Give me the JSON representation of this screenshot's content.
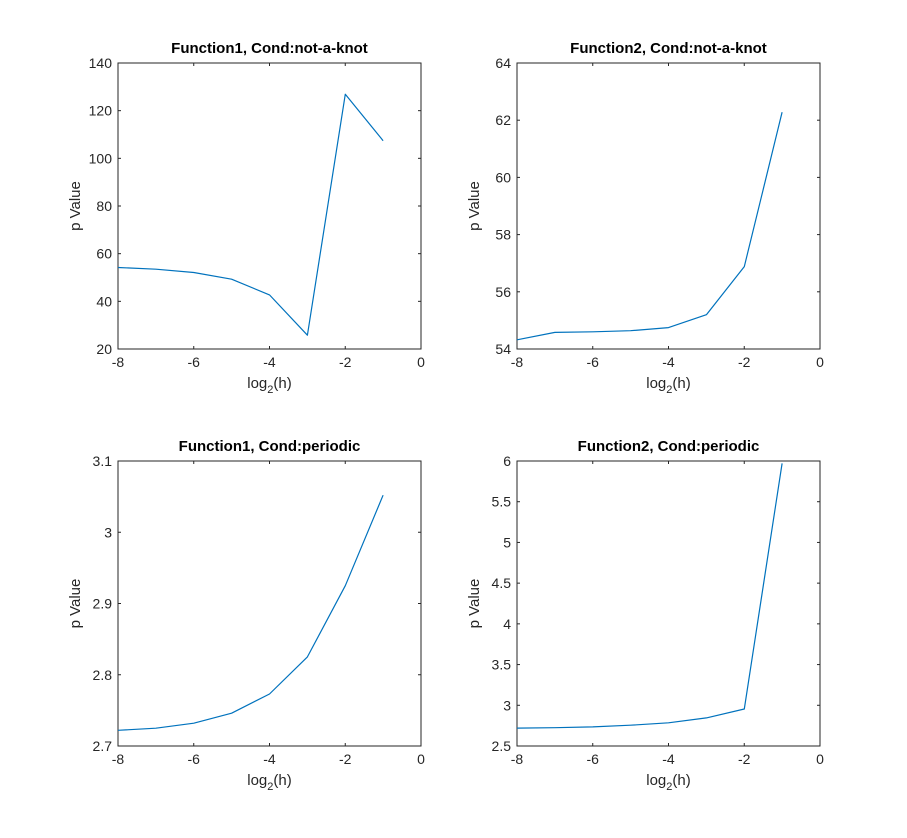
{
  "chart_data": [
    {
      "type": "line",
      "title": "Function1, Cond:not-a-knot",
      "xlabel": {
        "base": "log",
        "sub": "2",
        "rest": "(h)"
      },
      "ylabel": "p Value",
      "xlim": [
        -8,
        0
      ],
      "ylim": [
        20,
        140
      ],
      "xticks": [
        -8,
        -6,
        -4,
        -2,
        0
      ],
      "yticks": [
        20,
        40,
        60,
        80,
        100,
        120,
        140
      ],
      "grid": false,
      "series": [
        {
          "x": [
            -8,
            -7,
            -6,
            -5,
            -4,
            -3,
            -2,
            -1
          ],
          "y": [
            54.2,
            53.5,
            52.1,
            49.3,
            42.7,
            25.8,
            126.9,
            107.4
          ],
          "color": "#0072BD"
        }
      ]
    },
    {
      "type": "line",
      "title": "Function2, Cond:not-a-knot",
      "xlabel": {
        "base": "log",
        "sub": "2",
        "rest": "(h)"
      },
      "ylabel": "p Value",
      "xlim": [
        -8,
        0
      ],
      "ylim": [
        54,
        64
      ],
      "xticks": [
        -8,
        -6,
        -4,
        -2,
        0
      ],
      "yticks": [
        54,
        56,
        58,
        60,
        62,
        64
      ],
      "grid": false,
      "series": [
        {
          "x": [
            -8,
            -7,
            -6,
            -5,
            -4,
            -3,
            -2,
            -1
          ],
          "y": [
            54.32,
            54.58,
            54.6,
            54.64,
            54.75,
            55.2,
            56.88,
            62.28
          ],
          "color": "#0072BD"
        }
      ]
    },
    {
      "type": "line",
      "title": "Function1, Cond:periodic",
      "xlabel": {
        "base": "log",
        "sub": "2",
        "rest": "(h)"
      },
      "ylabel": "p Value",
      "xlim": [
        -8,
        0
      ],
      "ylim": [
        2.7,
        3.1
      ],
      "xticks": [
        -8,
        -6,
        -4,
        -2,
        0
      ],
      "yticks": [
        2.7,
        2.8,
        2.9,
        3,
        3.1
      ],
      "ytick_labels": [
        "2.7",
        "2.8",
        "2.9",
        "3",
        "3.1"
      ],
      "grid": false,
      "series": [
        {
          "x": [
            -8,
            -7,
            -6,
            -5,
            -4,
            -3,
            -2,
            -1
          ],
          "y": [
            2.722,
            2.725,
            2.732,
            2.746,
            2.773,
            2.825,
            2.925,
            3.052
          ],
          "color": "#0072BD"
        }
      ]
    },
    {
      "type": "line",
      "title": "Function2, Cond:periodic",
      "xlabel": {
        "base": "log",
        "sub": "2",
        "rest": "(h)"
      },
      "ylabel": "p Value",
      "xlim": [
        -8,
        0
      ],
      "ylim": [
        2.5,
        6
      ],
      "xticks": [
        -8,
        -6,
        -4,
        -2,
        0
      ],
      "yticks": [
        2.5,
        3,
        3.5,
        4,
        4.5,
        5,
        5.5,
        6
      ],
      "ytick_labels": [
        "2.5",
        "3",
        "3.5",
        "4",
        "4.5",
        "5",
        "5.5",
        "6"
      ],
      "grid": false,
      "series": [
        {
          "x": [
            -8,
            -7,
            -6,
            -5,
            -4,
            -3,
            -2,
            -1
          ],
          "y": [
            2.72,
            2.725,
            2.735,
            2.755,
            2.785,
            2.845,
            2.955,
            5.97
          ],
          "color": "#0072BD"
        }
      ]
    }
  ]
}
